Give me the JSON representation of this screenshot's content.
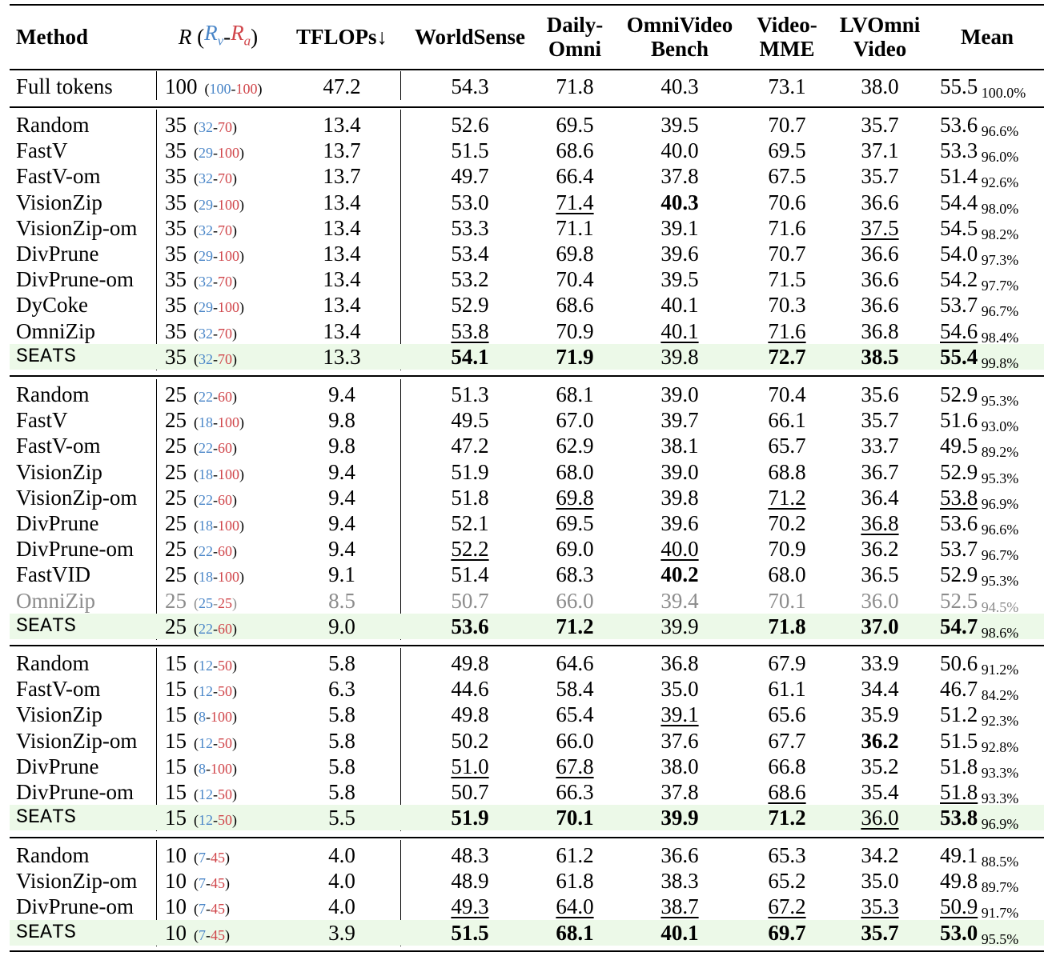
{
  "header": {
    "method": "Method",
    "r_label": "R",
    "r_open": "(",
    "rv_label": "R",
    "rv_sub": "v",
    "r_dash": "-",
    "ra_label": "R",
    "ra_sub": "a",
    "r_close": ")",
    "tflops": "TFLOPs↓",
    "worldsense": "WorldSense",
    "dailyomni_1": "Daily-",
    "dailyomni_2": "Omni",
    "omnivideo_1": "OmniVideo",
    "omnivideo_2": "Bench",
    "videomme_1": "Video-",
    "videomme_2": "MME",
    "lvomni_1": "LVOmni",
    "lvomni_2": "Video",
    "mean": "Mean"
  },
  "groups": [
    {
      "rows": [
        {
          "method": "Full tokens",
          "r": "100",
          "rv": "100",
          "ra": "100",
          "tflops": "47.2",
          "ws": "54.3",
          "do": "71.8",
          "ovb": "40.3",
          "vm": "73.1",
          "lvo": "38.0",
          "mean": "55.5",
          "pct": "100.0%",
          "style": {}
        }
      ]
    },
    {
      "rows": [
        {
          "method": "Random",
          "r": "35",
          "rv": "32",
          "ra": "70",
          "tflops": "13.4",
          "ws": "52.6",
          "do": "69.5",
          "ovb": "39.5",
          "vm": "70.7",
          "lvo": "35.7",
          "mean": "53.6",
          "pct": "96.6%",
          "style": {}
        },
        {
          "method": "FastV",
          "r": "35",
          "rv": "29",
          "ra": "100",
          "tflops": "13.7",
          "ws": "51.5",
          "do": "68.6",
          "ovb": "40.0",
          "vm": "69.5",
          "lvo": "37.1",
          "mean": "53.3",
          "pct": "96.0%",
          "style": {}
        },
        {
          "method": "FastV-om",
          "r": "35",
          "rv": "32",
          "ra": "70",
          "tflops": "13.7",
          "ws": "49.7",
          "do": "66.4",
          "ovb": "37.8",
          "vm": "67.5",
          "lvo": "35.7",
          "mean": "51.4",
          "pct": "92.6%",
          "style": {}
        },
        {
          "method": "VisionZip",
          "r": "35",
          "rv": "29",
          "ra": "100",
          "tflops": "13.4",
          "ws": "53.0",
          "do": "71.4",
          "ovb": "40.3",
          "vm": "70.6",
          "lvo": "36.6",
          "mean": "54.4",
          "pct": "98.0%",
          "style": {
            "do": "u",
            "ovb": "b"
          }
        },
        {
          "method": "VisionZip-om",
          "r": "35",
          "rv": "32",
          "ra": "70",
          "tflops": "13.4",
          "ws": "53.3",
          "do": "71.1",
          "ovb": "39.1",
          "vm": "71.6",
          "lvo": "37.5",
          "mean": "54.5",
          "pct": "98.2%",
          "style": {
            "lvo": "u"
          }
        },
        {
          "method": "DivPrune",
          "r": "35",
          "rv": "29",
          "ra": "100",
          "tflops": "13.4",
          "ws": "53.4",
          "do": "69.8",
          "ovb": "39.6",
          "vm": "70.7",
          "lvo": "36.6",
          "mean": "54.0",
          "pct": "97.3%",
          "style": {}
        },
        {
          "method": "DivPrune-om",
          "r": "35",
          "rv": "32",
          "ra": "70",
          "tflops": "13.4",
          "ws": "53.2",
          "do": "70.4",
          "ovb": "39.5",
          "vm": "71.5",
          "lvo": "36.6",
          "mean": "54.2",
          "pct": "97.7%",
          "style": {}
        },
        {
          "method": "DyCoke",
          "r": "35",
          "rv": "29",
          "ra": "100",
          "tflops": "13.4",
          "ws": "52.9",
          "do": "68.6",
          "ovb": "40.1",
          "vm": "70.3",
          "lvo": "36.6",
          "mean": "53.7",
          "pct": "96.7%",
          "style": {}
        },
        {
          "method": "OmniZip",
          "r": "35",
          "rv": "32",
          "ra": "70",
          "tflops": "13.4",
          "ws": "53.8",
          "do": "70.9",
          "ovb": "40.1",
          "vm": "71.6",
          "lvo": "36.8",
          "mean": "54.6",
          "pct": "98.4%",
          "style": {
            "ws": "u",
            "ovb": "u",
            "vm": "u",
            "mean": "u"
          }
        },
        {
          "method": "SEATS",
          "r": "35",
          "rv": "32",
          "ra": "70",
          "tflops": "13.3",
          "ws": "54.1",
          "do": "71.9",
          "ovb": "39.8",
          "vm": "72.7",
          "lvo": "38.5",
          "mean": "55.4",
          "pct": "99.8%",
          "seats": true,
          "style": {
            "ws": "b",
            "do": "b",
            "vm": "b",
            "lvo": "b",
            "mean": "b"
          }
        }
      ]
    },
    {
      "rows": [
        {
          "method": "Random",
          "r": "25",
          "rv": "22",
          "ra": "60",
          "tflops": "9.4",
          "ws": "51.3",
          "do": "68.1",
          "ovb": "39.0",
          "vm": "70.4",
          "lvo": "35.6",
          "mean": "52.9",
          "pct": "95.3%",
          "style": {}
        },
        {
          "method": "FastV",
          "r": "25",
          "rv": "18",
          "ra": "100",
          "tflops": "9.8",
          "ws": "49.5",
          "do": "67.0",
          "ovb": "39.7",
          "vm": "66.1",
          "lvo": "35.7",
          "mean": "51.6",
          "pct": "93.0%",
          "style": {}
        },
        {
          "method": "FastV-om",
          "r": "25",
          "rv": "22",
          "ra": "60",
          "tflops": "9.8",
          "ws": "47.2",
          "do": "62.9",
          "ovb": "38.1",
          "vm": "65.7",
          "lvo": "33.7",
          "mean": "49.5",
          "pct": "89.2%",
          "style": {}
        },
        {
          "method": "VisionZip",
          "r": "25",
          "rv": "18",
          "ra": "100",
          "tflops": "9.4",
          "ws": "51.9",
          "do": "68.0",
          "ovb": "39.0",
          "vm": "68.8",
          "lvo": "36.7",
          "mean": "52.9",
          "pct": "95.3%",
          "style": {}
        },
        {
          "method": "VisionZip-om",
          "r": "25",
          "rv": "22",
          "ra": "60",
          "tflops": "9.4",
          "ws": "51.8",
          "do": "69.8",
          "ovb": "39.8",
          "vm": "71.2",
          "lvo": "36.4",
          "mean": "53.8",
          "pct": "96.9%",
          "style": {
            "do": "u",
            "vm": "u",
            "mean": "u"
          }
        },
        {
          "method": "DivPrune",
          "r": "25",
          "rv": "18",
          "ra": "100",
          "tflops": "9.4",
          "ws": "52.1",
          "do": "69.5",
          "ovb": "39.6",
          "vm": "70.2",
          "lvo": "36.8",
          "mean": "53.6",
          "pct": "96.6%",
          "style": {
            "lvo": "u"
          }
        },
        {
          "method": "DivPrune-om",
          "r": "25",
          "rv": "22",
          "ra": "60",
          "tflops": "9.4",
          "ws": "52.2",
          "do": "69.0",
          "ovb": "40.0",
          "vm": "70.9",
          "lvo": "36.2",
          "mean": "53.7",
          "pct": "96.7%",
          "style": {
            "ws": "u",
            "ovb": "u"
          }
        },
        {
          "method": "FastVID",
          "r": "25",
          "rv": "18",
          "ra": "100",
          "tflops": "9.1",
          "ws": "51.4",
          "do": "68.3",
          "ovb": "40.2",
          "vm": "68.0",
          "lvo": "36.5",
          "mean": "52.9",
          "pct": "95.3%",
          "style": {
            "ovb": "b"
          }
        },
        {
          "method": "OmniZip",
          "r": "25",
          "rv": "25",
          "ra": "25",
          "tflops": "8.5",
          "ws": "50.7",
          "do": "66.0",
          "ovb": "39.4",
          "vm": "70.1",
          "lvo": "36.0",
          "mean": "52.5",
          "pct": "94.5%",
          "gray": true,
          "style": {}
        },
        {
          "method": "SEATS",
          "r": "25",
          "rv": "22",
          "ra": "60",
          "tflops": "9.0",
          "ws": "53.6",
          "do": "71.2",
          "ovb": "39.9",
          "vm": "71.8",
          "lvo": "37.0",
          "mean": "54.7",
          "pct": "98.6%",
          "seats": true,
          "style": {
            "ws": "b",
            "do": "b",
            "vm": "b",
            "lvo": "b",
            "mean": "b"
          }
        }
      ]
    },
    {
      "rows": [
        {
          "method": "Random",
          "r": "15",
          "rv": "12",
          "ra": "50",
          "tflops": "5.8",
          "ws": "49.8",
          "do": "64.6",
          "ovb": "36.8",
          "vm": "67.9",
          "lvo": "33.9",
          "mean": "50.6",
          "pct": "91.2%",
          "style": {}
        },
        {
          "method": "FastV-om",
          "r": "15",
          "rv": "12",
          "ra": "50",
          "tflops": "6.3",
          "ws": "44.6",
          "do": "58.4",
          "ovb": "35.0",
          "vm": "61.1",
          "lvo": "34.4",
          "mean": "46.7",
          "pct": "84.2%",
          "style": {}
        },
        {
          "method": "VisionZip",
          "r": "15",
          "rv": "8",
          "ra": "100",
          "tflops": "5.8",
          "ws": "49.8",
          "do": "65.4",
          "ovb": "39.1",
          "vm": "65.6",
          "lvo": "35.9",
          "mean": "51.2",
          "pct": "92.3%",
          "style": {
            "ovb": "u"
          }
        },
        {
          "method": "VisionZip-om",
          "r": "15",
          "rv": "12",
          "ra": "50",
          "tflops": "5.8",
          "ws": "50.2",
          "do": "66.0",
          "ovb": "37.6",
          "vm": "67.7",
          "lvo": "36.2",
          "mean": "51.5",
          "pct": "92.8%",
          "style": {
            "lvo": "b"
          }
        },
        {
          "method": "DivPrune",
          "r": "15",
          "rv": "8",
          "ra": "100",
          "tflops": "5.8",
          "ws": "51.0",
          "do": "67.8",
          "ovb": "38.0",
          "vm": "66.8",
          "lvo": "35.2",
          "mean": "51.8",
          "pct": "93.3%",
          "style": {
            "ws": "u",
            "do": "u"
          }
        },
        {
          "method": "DivPrune-om",
          "r": "15",
          "rv": "12",
          "ra": "50",
          "tflops": "5.8",
          "ws": "50.7",
          "do": "66.3",
          "ovb": "37.8",
          "vm": "68.6",
          "lvo": "35.4",
          "mean": "51.8",
          "pct": "93.3%",
          "style": {
            "vm": "u",
            "mean": "u"
          }
        },
        {
          "method": "SEATS",
          "r": "15",
          "rv": "12",
          "ra": "50",
          "tflops": "5.5",
          "ws": "51.9",
          "do": "70.1",
          "ovb": "39.9",
          "vm": "71.2",
          "lvo": "36.0",
          "mean": "53.8",
          "pct": "96.9%",
          "seats": true,
          "style": {
            "ws": "b",
            "do": "b",
            "ovb": "b",
            "vm": "b",
            "lvo": "u",
            "mean": "b"
          }
        }
      ]
    },
    {
      "rows": [
        {
          "method": "Random",
          "r": "10",
          "rv": "7",
          "ra": "45",
          "tflops": "4.0",
          "ws": "48.3",
          "do": "61.2",
          "ovb": "36.6",
          "vm": "65.3",
          "lvo": "34.2",
          "mean": "49.1",
          "pct": "88.5%",
          "style": {}
        },
        {
          "method": "VisionZip-om",
          "r": "10",
          "rv": "7",
          "ra": "45",
          "tflops": "4.0",
          "ws": "48.9",
          "do": "61.8",
          "ovb": "38.3",
          "vm": "65.2",
          "lvo": "35.0",
          "mean": "49.8",
          "pct": "89.7%",
          "style": {}
        },
        {
          "method": "DivPrune-om",
          "r": "10",
          "rv": "7",
          "ra": "45",
          "tflops": "4.0",
          "ws": "49.3",
          "do": "64.0",
          "ovb": "38.7",
          "vm": "67.2",
          "lvo": "35.3",
          "mean": "50.9",
          "pct": "91.7%",
          "style": {
            "ws": "u",
            "do": "u",
            "ovb": "u",
            "vm": "u",
            "lvo": "u",
            "mean": "u"
          }
        },
        {
          "method": "SEATS",
          "r": "10",
          "rv": "7",
          "ra": "45",
          "tflops": "3.9",
          "ws": "51.5",
          "do": "68.1",
          "ovb": "40.1",
          "vm": "69.7",
          "lvo": "35.7",
          "mean": "53.0",
          "pct": "95.5%",
          "seats": true,
          "style": {
            "ws": "b",
            "do": "b",
            "ovb": "b",
            "vm": "b",
            "lvo": "b",
            "mean": "b"
          }
        }
      ]
    }
  ]
}
